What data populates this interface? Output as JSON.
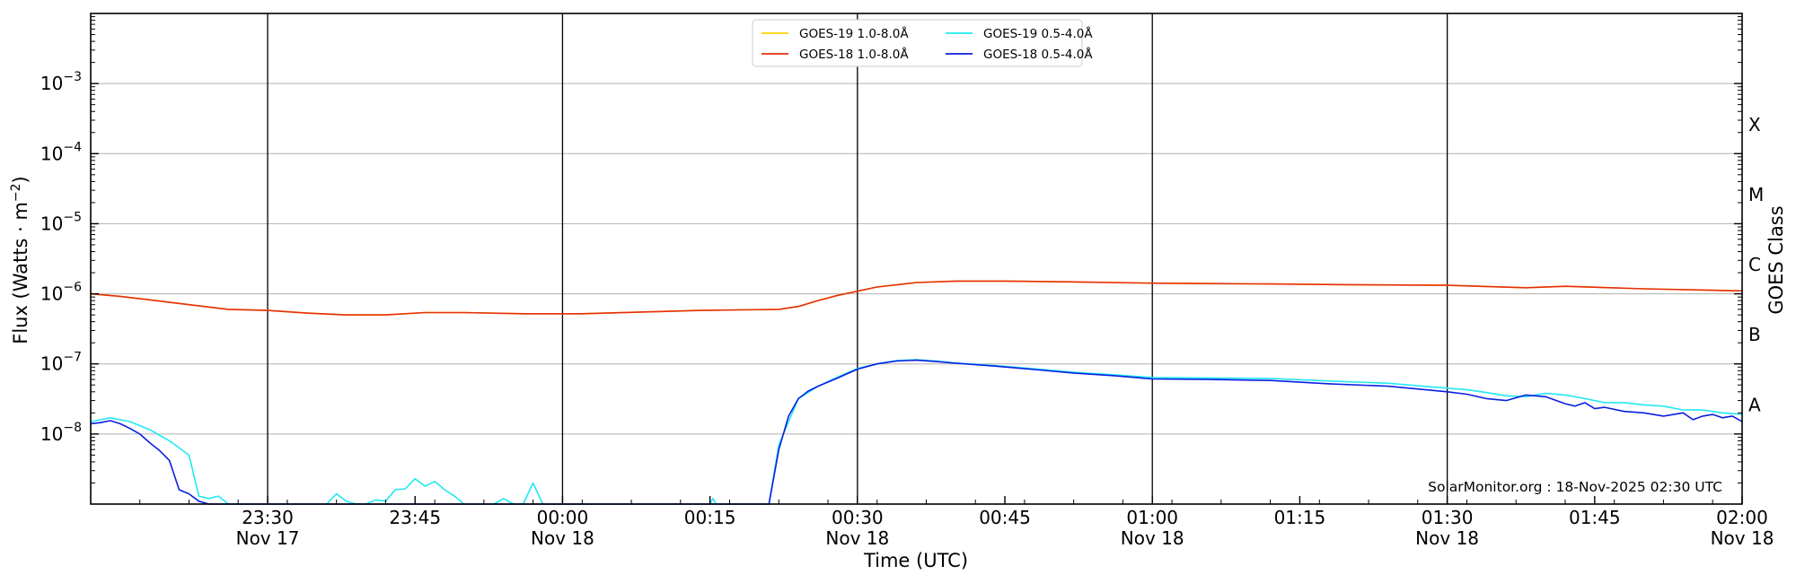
{
  "chart_data": {
    "type": "line",
    "xlabel": "Time (UTC)",
    "ylabel_main": "Flux (Watts · m",
    "ylabel_sup": "−2",
    "ylabel_close": ")",
    "ylabel_right": "GOES Class",
    "credit": "SolarMonitor.org : 18-Nov-2025 02:30 UTC",
    "y_scale": "log",
    "ylim": [
      1e-09,
      0.01
    ],
    "x_unit": "minutes relative to 2025-11-18 00:00 UTC",
    "xlim": [
      -48,
      120
    ],
    "grid": "horizontal lines at each decade",
    "legend_position": "top-center",
    "y_ticks": [
      {
        "value": 1e-08,
        "base": "10",
        "exp": "−8"
      },
      {
        "value": 1e-07,
        "base": "10",
        "exp": "−7"
      },
      {
        "value": 1e-06,
        "base": "10",
        "exp": "−6"
      },
      {
        "value": 1e-05,
        "base": "10",
        "exp": "−5"
      },
      {
        "value": 0.0001,
        "base": "10",
        "exp": "−4"
      },
      {
        "value": 0.001,
        "base": "10",
        "exp": "−3"
      }
    ],
    "x_ticks": [
      {
        "value": -30,
        "time": "23:30",
        "date": "Nov 17",
        "vline": true
      },
      {
        "value": -15,
        "time": "23:45",
        "date": "",
        "vline": false
      },
      {
        "value": 0,
        "time": "00:00",
        "date": "Nov 18",
        "vline": true
      },
      {
        "value": 15,
        "time": "00:15",
        "date": "",
        "vline": false
      },
      {
        "value": 30,
        "time": "00:30",
        "date": "Nov 18",
        "vline": true
      },
      {
        "value": 45,
        "time": "00:45",
        "date": "",
        "vline": false
      },
      {
        "value": 60,
        "time": "01:00",
        "date": "Nov 18",
        "vline": true
      },
      {
        "value": 75,
        "time": "01:15",
        "date": "",
        "vline": false
      },
      {
        "value": 90,
        "time": "01:30",
        "date": "Nov 18",
        "vline": true
      },
      {
        "value": 105,
        "time": "01:45",
        "date": "",
        "vline": false
      },
      {
        "value": 120,
        "time": "02:00",
        "date": "Nov 18",
        "vline": false
      }
    ],
    "goes_classes": [
      {
        "label": "A",
        "value": 2e-08
      },
      {
        "label": "B",
        "value": 2e-07
      },
      {
        "label": "C",
        "value": 2e-06
      },
      {
        "label": "M",
        "value": 2e-05
      },
      {
        "label": "X",
        "value": 0.0002
      }
    ],
    "series": [
      {
        "name": "GOES-19 1.0-8.0Å",
        "color": "#ffd500",
        "x": [
          -48,
          -45,
          -42,
          -38,
          -34,
          -30,
          -26,
          -22,
          -18,
          -14,
          -10,
          -4,
          2,
          8,
          14,
          18,
          22,
          24,
          26,
          28,
          32,
          36,
          40,
          45,
          52,
          60,
          66,
          72,
          80,
          90,
          98,
          102,
          110,
          120
        ],
        "y": [
          1e-06,
          9.2e-07,
          8.2e-07,
          7e-07,
          6e-07,
          5.8e-07,
          5.3e-07,
          5e-07,
          5e-07,
          5.4e-07,
          5.4e-07,
          5.2e-07,
          5.2e-07,
          5.5e-07,
          5.8e-07,
          5.9e-07,
          6e-07,
          6.6e-07,
          8e-07,
          9.5e-07,
          1.25e-06,
          1.45e-06,
          1.52e-06,
          1.52e-06,
          1.48e-06,
          1.42e-06,
          1.4e-06,
          1.38e-06,
          1.35e-06,
          1.32e-06,
          1.22e-06,
          1.28e-06,
          1.18e-06,
          1.1e-06
        ]
      },
      {
        "name": "GOES-18 1.0-8.0Å",
        "color": "#e52e0e",
        "x": [
          -48,
          -45,
          -42,
          -38,
          -34,
          -30,
          -26,
          -22,
          -18,
          -14,
          -10,
          -4,
          2,
          8,
          14,
          18,
          22,
          24,
          26,
          28,
          32,
          36,
          40,
          45,
          52,
          60,
          66,
          72,
          80,
          90,
          98,
          102,
          110,
          120
        ],
        "y": [
          1e-06,
          9.2e-07,
          8.2e-07,
          7e-07,
          6e-07,
          5.8e-07,
          5.3e-07,
          5e-07,
          5e-07,
          5.4e-07,
          5.4e-07,
          5.2e-07,
          5.2e-07,
          5.5e-07,
          5.8e-07,
          5.9e-07,
          6e-07,
          6.6e-07,
          8e-07,
          9.5e-07,
          1.25e-06,
          1.45e-06,
          1.52e-06,
          1.52e-06,
          1.48e-06,
          1.42e-06,
          1.4e-06,
          1.38e-06,
          1.35e-06,
          1.32e-06,
          1.22e-06,
          1.28e-06,
          1.18e-06,
          1.1e-06
        ]
      },
      {
        "name": "GOES-19 0.5-4.0Å",
        "color": "#22e8f2",
        "x": [
          -48,
          -46,
          -44,
          -42,
          -40,
          -38,
          -37,
          -36,
          -35,
          -34,
          -33,
          -32,
          -31,
          -30,
          -24,
          -23,
          -22,
          -21,
          -20,
          -19,
          -18,
          -17,
          -16,
          -15,
          -14,
          -13,
          -12,
          -11,
          -10,
          -9,
          -7,
          -6,
          -5,
          -4,
          -3,
          -2,
          -1,
          0,
          15,
          15.3,
          15.6,
          21,
          22,
          24,
          26,
          28,
          30,
          32,
          34,
          36,
          38,
          40,
          44,
          48,
          52,
          56,
          60,
          66,
          72,
          78,
          84,
          90,
          92,
          94,
          96,
          98,
          100,
          102,
          104,
          106,
          108,
          110,
          112,
          114,
          116,
          118,
          120
        ],
        "y": [
          1.5e-08,
          1.7e-08,
          1.5e-08,
          1.15e-08,
          8e-09,
          5e-09,
          1.3e-09,
          1.2e-09,
          1.3e-09,
          1e-09,
          1e-09,
          1e-09,
          1e-09,
          1e-09,
          1e-09,
          1.4e-09,
          1.1e-09,
          1e-09,
          1e-09,
          1.15e-09,
          1.1e-09,
          1.6e-09,
          1.65e-09,
          2.3e-09,
          1.8e-09,
          2.1e-09,
          1.6e-09,
          1.3e-09,
          1e-09,
          1e-09,
          1e-09,
          1.2e-09,
          1e-09,
          1e-09,
          2e-09,
          1e-09,
          1e-09,
          1e-09,
          1e-09,
          1.2e-09,
          1e-09,
          1e-09,
          7e-09,
          3.2e-08,
          4.8e-08,
          6.5e-08,
          8.6e-08,
          1e-07,
          1.12e-07,
          1.15e-07,
          1.1e-07,
          1.03e-07,
          9.5e-08,
          8.5e-08,
          7.6e-08,
          7e-08,
          6.4e-08,
          6.3e-08,
          6.2e-08,
          5.7e-08,
          5.3e-08,
          4.5e-08,
          4.3e-08,
          3.9e-08,
          3.5e-08,
          3.4e-08,
          3.8e-08,
          3.6e-08,
          3.2e-08,
          2.8e-08,
          2.8e-08,
          2.6e-08,
          2.5e-08,
          2.2e-08,
          2.2e-08,
          2e-08,
          1.9e-08
        ]
      },
      {
        "name": "GOES-18 0.5-4.0Å",
        "color": "#0b1fe0",
        "x": [
          -48,
          -47,
          -46,
          -45,
          -44,
          -43,
          -42,
          -41,
          -40,
          -39,
          -38,
          -37,
          -36,
          -35,
          -34,
          -33,
          21,
          22,
          23,
          24,
          25,
          26,
          28,
          30,
          32,
          34,
          36,
          38,
          40,
          44,
          48,
          52,
          56,
          60,
          66,
          72,
          78,
          84,
          90,
          92,
          94,
          96,
          98,
          100,
          102,
          103,
          104,
          105,
          106,
          108,
          110,
          112,
          114,
          115,
          116,
          117,
          118,
          119,
          120
        ],
        "y": [
          1.4e-08,
          1.45e-08,
          1.55e-08,
          1.4e-08,
          1.2e-08,
          1e-08,
          7.5e-09,
          5.8e-09,
          4.2e-09,
          1.6e-09,
          1.4e-09,
          1.1e-09,
          1e-09,
          1e-09,
          1e-09,
          1e-09,
          1e-09,
          6e-09,
          1.8e-08,
          3.2e-08,
          4.1e-08,
          4.8e-08,
          6.3e-08,
          8.4e-08,
          1e-07,
          1.1e-07,
          1.13e-07,
          1.08e-07,
          1.02e-07,
          9.3e-08,
          8.3e-08,
          7.4e-08,
          6.8e-08,
          6.1e-08,
          6e-08,
          5.8e-08,
          5.2e-08,
          4.8e-08,
          4e-08,
          3.7e-08,
          3.2e-08,
          3e-08,
          3.6e-08,
          3.4e-08,
          2.7e-08,
          2.5e-08,
          2.8e-08,
          2.3e-08,
          2.4e-08,
          2.1e-08,
          2e-08,
          1.8e-08,
          2e-08,
          1.6e-08,
          1.8e-08,
          1.9e-08,
          1.7e-08,
          1.8e-08,
          1.5e-08
        ]
      }
    ]
  }
}
